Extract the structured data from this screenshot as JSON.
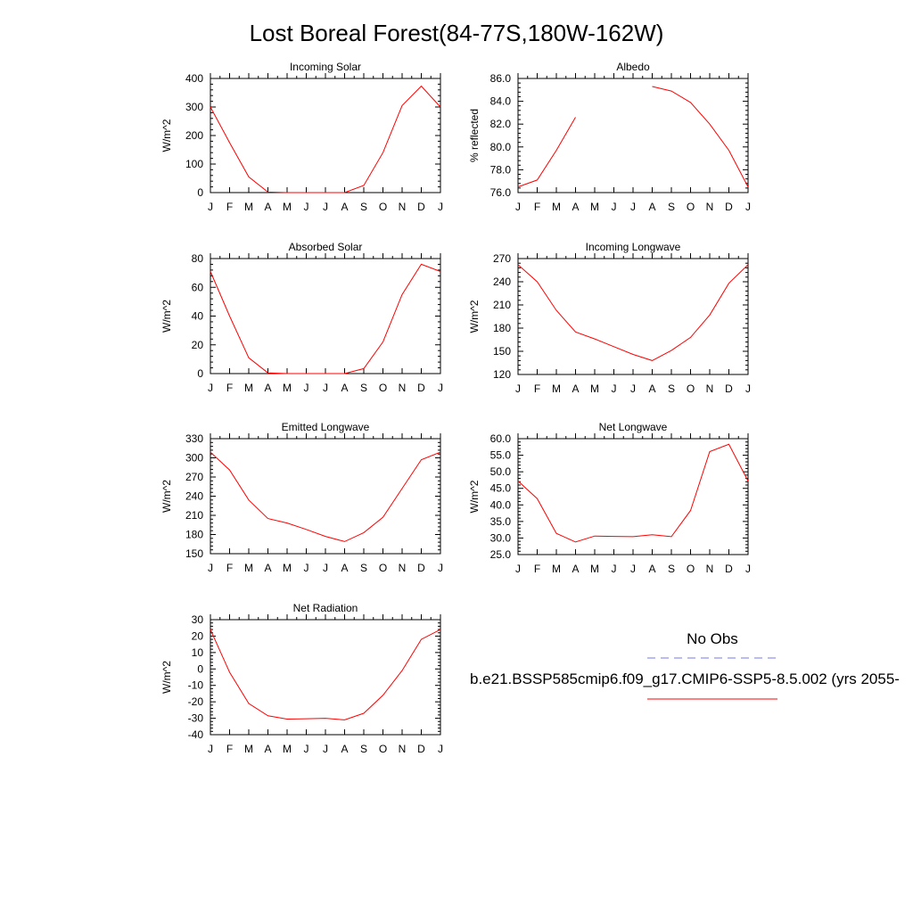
{
  "title": "Lost Boreal Forest(84-77S,180W-162W)",
  "month_labels": [
    "J",
    "F",
    "M",
    "A",
    "M",
    "J",
    "J",
    "A",
    "S",
    "O",
    "N",
    "D",
    "J"
  ],
  "legend": {
    "obs_label": "No Obs",
    "model_label": "b.e21.BSSP585cmip6.f09_g17.CMIP6-SSP5-8.5.002 (yrs 2055-",
    "obs_color": "#7777ee",
    "model_color": "#ff0000"
  },
  "colors": {
    "line": "#ff0000",
    "axis": "#000000"
  },
  "chart_data": [
    {
      "type": "line",
      "title": "Incoming Solar",
      "ylabel": "W/m^2",
      "ylim": [
        0,
        400
      ],
      "yticks": [
        "0",
        "100",
        "200",
        "300",
        "400"
      ],
      "x": [
        "J",
        "F",
        "M",
        "A",
        "M",
        "J",
        "J",
        "A",
        "S",
        "O",
        "N",
        "D",
        "J"
      ],
      "series": [
        {
          "values": [
            300,
            175,
            55,
            2,
            0,
            0,
            0,
            0,
            25,
            140,
            305,
            373,
            300
          ]
        }
      ]
    },
    {
      "type": "line",
      "title": "Albedo",
      "ylabel": "% reflected",
      "ylim": [
        76,
        86
      ],
      "yticks": [
        "76.0",
        "78.0",
        "80.0",
        "82.0",
        "84.0",
        "86.0"
      ],
      "x": [
        "J",
        "F",
        "M",
        "A",
        "M",
        "J",
        "J",
        "A",
        "S",
        "O",
        "N",
        "D",
        "J"
      ],
      "series": [
        {
          "values": [
            76.5,
            77.1,
            79.7,
            82.6,
            null,
            null,
            null,
            85.3,
            84.9,
            83.9,
            82.0,
            79.7,
            76.5
          ]
        }
      ]
    },
    {
      "type": "line",
      "title": "Absorbed Solar",
      "ylabel": "W/m^2",
      "ylim": [
        0,
        80
      ],
      "yticks": [
        "0",
        "20",
        "40",
        "60",
        "80"
      ],
      "x": [
        "J",
        "F",
        "M",
        "A",
        "M",
        "J",
        "J",
        "A",
        "S",
        "O",
        "N",
        "D",
        "J"
      ],
      "series": [
        {
          "values": [
            71,
            40,
            11,
            0.5,
            0,
            0,
            0,
            0,
            3.5,
            22,
            55,
            76,
            71
          ]
        }
      ]
    },
    {
      "type": "line",
      "title": "Incoming Longwave",
      "ylabel": "W/m^2",
      "ylim": [
        120,
        270
      ],
      "yticks": [
        "120",
        "150",
        "180",
        "210",
        "240",
        "270"
      ],
      "x": [
        "J",
        "F",
        "M",
        "A",
        "M",
        "J",
        "J",
        "A",
        "S",
        "O",
        "N",
        "D",
        "J"
      ],
      "series": [
        {
          "values": [
            262,
            240,
            203,
            175,
            166,
            156,
            146,
            138,
            151,
            168,
            197,
            238,
            262
          ]
        }
      ]
    },
    {
      "type": "line",
      "title": "Emitted Longwave",
      "ylabel": "W/m^2",
      "ylim": [
        150,
        330
      ],
      "yticks": [
        "150",
        "180",
        "210",
        "240",
        "270",
        "300",
        "330"
      ],
      "x": [
        "J",
        "F",
        "M",
        "A",
        "M",
        "J",
        "J",
        "A",
        "S",
        "O",
        "N",
        "D",
        "J"
      ],
      "series": [
        {
          "values": [
            309,
            281,
            234,
            205,
            198,
            188,
            177,
            169,
            183,
            207,
            252,
            297,
            309
          ]
        }
      ]
    },
    {
      "type": "line",
      "title": "Net Longwave",
      "ylabel": "W/m^2",
      "ylim": [
        25,
        60
      ],
      "yticks": [
        "25.0",
        "30.0",
        "35.0",
        "40.0",
        "45.0",
        "50.0",
        "55.0",
        "60.0"
      ],
      "x": [
        "J",
        "F",
        "M",
        "A",
        "M",
        "J",
        "J",
        "A",
        "S",
        "O",
        "N",
        "D",
        "J"
      ],
      "series": [
        {
          "values": [
            47.2,
            41.9,
            31.4,
            28.8,
            30.6,
            30.5,
            30.4,
            31.0,
            30.4,
            38.3,
            56.1,
            58.3,
            47.2
          ]
        }
      ]
    },
    {
      "type": "line",
      "title": "Net Radiation",
      "ylabel": "W/m^2",
      "ylim": [
        -40,
        30
      ],
      "yticks": [
        "-40",
        "-30",
        "-20",
        "-10",
        "0",
        "10",
        "20",
        "30"
      ],
      "x": [
        "J",
        "F",
        "M",
        "A",
        "M",
        "J",
        "J",
        "A",
        "S",
        "O",
        "N",
        "D",
        "J"
      ],
      "series": [
        {
          "values": [
            24,
            -2,
            -21,
            -28.5,
            -30.5,
            -30.3,
            -30,
            -31,
            -27,
            -16,
            -1,
            18,
            24
          ]
        }
      ]
    }
  ]
}
